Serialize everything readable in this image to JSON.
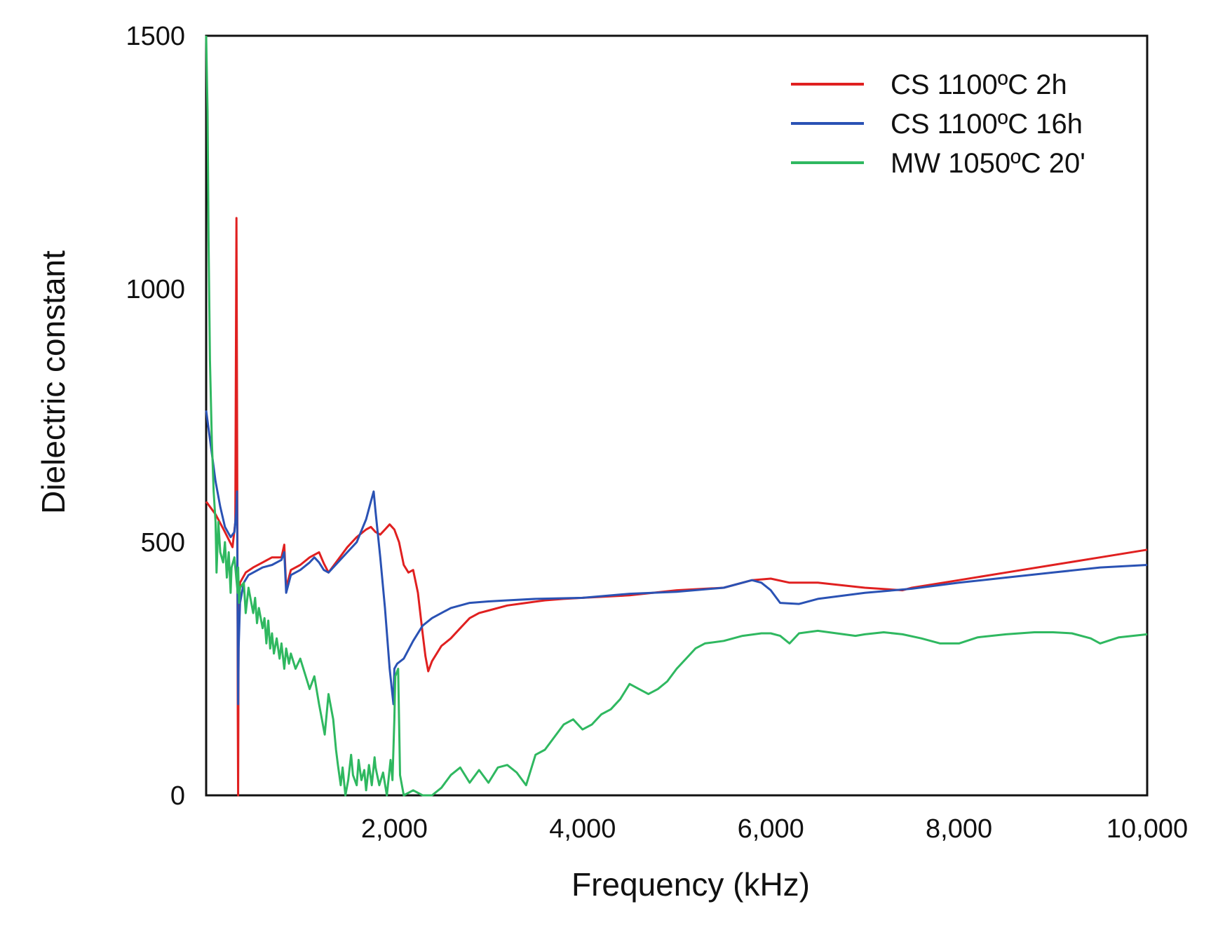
{
  "chart_data": {
    "type": "line",
    "title": "",
    "xlabel": "Frequency (kHz)",
    "ylabel": "Dielectric constant",
    "xlim": [
      0,
      10000
    ],
    "ylim": [
      0,
      1500
    ],
    "x_ticks": [
      {
        "value": 2000,
        "label": "2,000"
      },
      {
        "value": 4000,
        "label": "4,000"
      },
      {
        "value": 6000,
        "label": "6,000"
      },
      {
        "value": 8000,
        "label": "8,000"
      },
      {
        "value": 10000,
        "label": "10,000"
      }
    ],
    "y_ticks": [
      {
        "value": 0,
        "label": "0"
      },
      {
        "value": 500,
        "label": "500"
      },
      {
        "value": 1000,
        "label": "1000"
      },
      {
        "value": 1500,
        "label": "1500"
      }
    ],
    "grid": false,
    "legend_position": "top-right",
    "series": [
      {
        "name": "CS 1100ºC 2h",
        "color": "#e02020",
        "points": [
          [
            0,
            580
          ],
          [
            100,
            555
          ],
          [
            200,
            520
          ],
          [
            280,
            490
          ],
          [
            310,
            540
          ],
          [
            315,
            820
          ],
          [
            322,
            1140
          ],
          [
            328,
            790
          ],
          [
            332,
            500
          ],
          [
            336,
            160
          ],
          [
            340,
            0
          ],
          [
            345,
            330
          ],
          [
            360,
            420
          ],
          [
            420,
            440
          ],
          [
            500,
            450
          ],
          [
            600,
            460
          ],
          [
            700,
            470
          ],
          [
            800,
            470
          ],
          [
            830,
            495
          ],
          [
            850,
            410
          ],
          [
            900,
            445
          ],
          [
            1000,
            455
          ],
          [
            1100,
            470
          ],
          [
            1200,
            480
          ],
          [
            1250,
            458
          ],
          [
            1300,
            440
          ],
          [
            1400,
            465
          ],
          [
            1500,
            490
          ],
          [
            1600,
            510
          ],
          [
            1700,
            525
          ],
          [
            1750,
            530
          ],
          [
            1800,
            520
          ],
          [
            1850,
            515
          ],
          [
            1900,
            525
          ],
          [
            1950,
            535
          ],
          [
            2000,
            525
          ],
          [
            2050,
            500
          ],
          [
            2100,
            455
          ],
          [
            2150,
            440
          ],
          [
            2200,
            445
          ],
          [
            2250,
            400
          ],
          [
            2300,
            320
          ],
          [
            2330,
            275
          ],
          [
            2360,
            245
          ],
          [
            2400,
            265
          ],
          [
            2500,
            295
          ],
          [
            2600,
            310
          ],
          [
            2700,
            330
          ],
          [
            2800,
            350
          ],
          [
            2900,
            360
          ],
          [
            3000,
            365
          ],
          [
            3200,
            375
          ],
          [
            3400,
            380
          ],
          [
            3600,
            385
          ],
          [
            3800,
            388
          ],
          [
            4000,
            390
          ],
          [
            4500,
            395
          ],
          [
            5000,
            405
          ],
          [
            5500,
            410
          ],
          [
            5800,
            425
          ],
          [
            6000,
            428
          ],
          [
            6200,
            420
          ],
          [
            6500,
            420
          ],
          [
            7000,
            410
          ],
          [
            7400,
            405
          ],
          [
            7500,
            410
          ],
          [
            8000,
            425
          ],
          [
            8500,
            440
          ],
          [
            9000,
            455
          ],
          [
            9500,
            470
          ],
          [
            10000,
            485
          ]
        ]
      },
      {
        "name": "CS 1100ºC 16h",
        "color": "#2a52b4",
        "points": [
          [
            0,
            760
          ],
          [
            50,
            690
          ],
          [
            100,
            620
          ],
          [
            150,
            570
          ],
          [
            200,
            530
          ],
          [
            260,
            510
          ],
          [
            300,
            520
          ],
          [
            320,
            560
          ],
          [
            328,
            600
          ],
          [
            335,
            330
          ],
          [
            340,
            180
          ],
          [
            345,
            290
          ],
          [
            360,
            380
          ],
          [
            400,
            420
          ],
          [
            450,
            435
          ],
          [
            500,
            440
          ],
          [
            600,
            450
          ],
          [
            700,
            455
          ],
          [
            800,
            465
          ],
          [
            830,
            480
          ],
          [
            850,
            400
          ],
          [
            900,
            435
          ],
          [
            1000,
            445
          ],
          [
            1100,
            460
          ],
          [
            1150,
            470
          ],
          [
            1200,
            460
          ],
          [
            1250,
            445
          ],
          [
            1300,
            440
          ],
          [
            1400,
            460
          ],
          [
            1500,
            480
          ],
          [
            1600,
            500
          ],
          [
            1700,
            545
          ],
          [
            1750,
            580
          ],
          [
            1780,
            600
          ],
          [
            1800,
            560
          ],
          [
            1850,
            470
          ],
          [
            1900,
            370
          ],
          [
            1950,
            250
          ],
          [
            1990,
            180
          ],
          [
            2000,
            250
          ],
          [
            2030,
            260
          ],
          [
            2100,
            270
          ],
          [
            2200,
            305
          ],
          [
            2300,
            335
          ],
          [
            2400,
            350
          ],
          [
            2500,
            360
          ],
          [
            2600,
            370
          ],
          [
            2800,
            380
          ],
          [
            3000,
            383
          ],
          [
            3200,
            385
          ],
          [
            3500,
            388
          ],
          [
            4000,
            390
          ],
          [
            4500,
            398
          ],
          [
            5000,
            402
          ],
          [
            5500,
            410
          ],
          [
            5800,
            425
          ],
          [
            5900,
            420
          ],
          [
            6000,
            405
          ],
          [
            6100,
            380
          ],
          [
            6300,
            378
          ],
          [
            6500,
            388
          ],
          [
            7000,
            400
          ],
          [
            7500,
            408
          ],
          [
            8000,
            420
          ],
          [
            8500,
            430
          ],
          [
            9000,
            440
          ],
          [
            9500,
            450
          ],
          [
            10000,
            455
          ]
        ]
      },
      {
        "name": "MW 1050ºC 20'",
        "color": "#2fb860",
        "points": [
          [
            0,
            1500
          ],
          [
            15,
            1350
          ],
          [
            25,
            1100
          ],
          [
            40,
            860
          ],
          [
            60,
            700
          ],
          [
            80,
            600
          ],
          [
            100,
            540
          ],
          [
            110,
            440
          ],
          [
            130,
            540
          ],
          [
            150,
            480
          ],
          [
            180,
            460
          ],
          [
            200,
            500
          ],
          [
            220,
            430
          ],
          [
            240,
            480
          ],
          [
            260,
            400
          ],
          [
            270,
            450
          ],
          [
            300,
            470
          ],
          [
            320,
            430
          ],
          [
            335,
            400
          ],
          [
            340,
            450
          ],
          [
            350,
            380
          ],
          [
            360,
            410
          ],
          [
            400,
            420
          ],
          [
            420,
            360
          ],
          [
            450,
            410
          ],
          [
            480,
            380
          ],
          [
            500,
            360
          ],
          [
            520,
            390
          ],
          [
            540,
            340
          ],
          [
            560,
            370
          ],
          [
            600,
            330
          ],
          [
            620,
            350
          ],
          [
            640,
            300
          ],
          [
            660,
            345
          ],
          [
            680,
            290
          ],
          [
            700,
            320
          ],
          [
            720,
            280
          ],
          [
            750,
            310
          ],
          [
            780,
            270
          ],
          [
            800,
            300
          ],
          [
            830,
            250
          ],
          [
            850,
            290
          ],
          [
            880,
            260
          ],
          [
            900,
            280
          ],
          [
            950,
            250
          ],
          [
            1000,
            270
          ],
          [
            1050,
            240
          ],
          [
            1100,
            210
          ],
          [
            1150,
            235
          ],
          [
            1200,
            180
          ],
          [
            1230,
            150
          ],
          [
            1260,
            120
          ],
          [
            1300,
            200
          ],
          [
            1350,
            150
          ],
          [
            1380,
            90
          ],
          [
            1400,
            60
          ],
          [
            1430,
            20
          ],
          [
            1450,
            55
          ],
          [
            1480,
            0
          ],
          [
            1510,
            30
          ],
          [
            1540,
            80
          ],
          [
            1560,
            40
          ],
          [
            1600,
            20
          ],
          [
            1620,
            70
          ],
          [
            1650,
            30
          ],
          [
            1680,
            50
          ],
          [
            1700,
            10
          ],
          [
            1730,
            60
          ],
          [
            1760,
            20
          ],
          [
            1790,
            75
          ],
          [
            1800,
            55
          ],
          [
            1840,
            20
          ],
          [
            1880,
            45
          ],
          [
            1920,
            0
          ],
          [
            1960,
            70
          ],
          [
            1980,
            30
          ],
          [
            2000,
            150
          ],
          [
            2010,
            235
          ],
          [
            2040,
            250
          ],
          [
            2060,
            40
          ],
          [
            2100,
            0
          ],
          [
            2200,
            10
          ],
          [
            2300,
            0
          ],
          [
            2400,
            0
          ],
          [
            2500,
            15
          ],
          [
            2600,
            40
          ],
          [
            2700,
            55
          ],
          [
            2800,
            25
          ],
          [
            2900,
            50
          ],
          [
            3000,
            25
          ],
          [
            3100,
            55
          ],
          [
            3200,
            60
          ],
          [
            3300,
            45
          ],
          [
            3400,
            20
          ],
          [
            3500,
            80
          ],
          [
            3600,
            90
          ],
          [
            3700,
            115
          ],
          [
            3800,
            140
          ],
          [
            3900,
            150
          ],
          [
            4000,
            130
          ],
          [
            4100,
            140
          ],
          [
            4200,
            160
          ],
          [
            4300,
            170
          ],
          [
            4400,
            190
          ],
          [
            4500,
            220
          ],
          [
            4600,
            210
          ],
          [
            4700,
            200
          ],
          [
            4800,
            210
          ],
          [
            4900,
            225
          ],
          [
            5000,
            250
          ],
          [
            5100,
            270
          ],
          [
            5200,
            290
          ],
          [
            5300,
            300
          ],
          [
            5500,
            305
          ],
          [
            5700,
            315
          ],
          [
            5900,
            320
          ],
          [
            6000,
            320
          ],
          [
            6100,
            315
          ],
          [
            6200,
            300
          ],
          [
            6300,
            320
          ],
          [
            6500,
            325
          ],
          [
            6700,
            320
          ],
          [
            6900,
            315
          ],
          [
            7000,
            318
          ],
          [
            7200,
            322
          ],
          [
            7400,
            318
          ],
          [
            7600,
            310
          ],
          [
            7800,
            300
          ],
          [
            8000,
            300
          ],
          [
            8200,
            312
          ],
          [
            8500,
            318
          ],
          [
            8800,
            322
          ],
          [
            9000,
            322
          ],
          [
            9200,
            320
          ],
          [
            9400,
            310
          ],
          [
            9500,
            300
          ],
          [
            9700,
            312
          ],
          [
            10000,
            318
          ]
        ]
      }
    ]
  }
}
